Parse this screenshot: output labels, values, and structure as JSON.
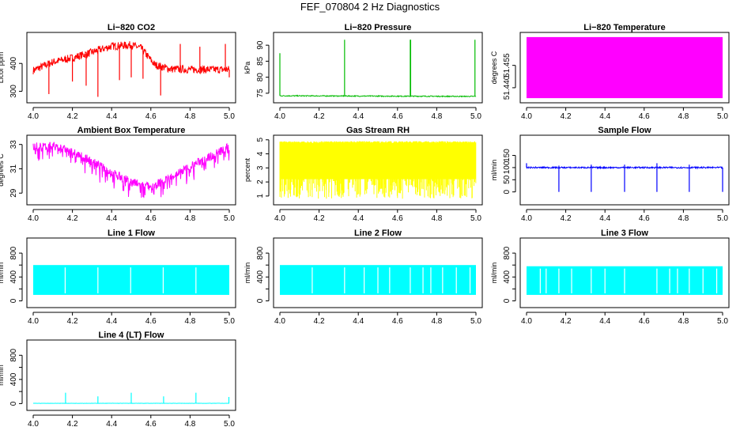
{
  "title": "FEF_070804  2 Hz Diagnostics",
  "colors": {
    "co2": "#ff0000",
    "pressure": "#00bb00",
    "temperature": "#ff00ff",
    "ambient": "#ff00ff",
    "rh": "#ffff00",
    "sample": "#0000ff",
    "lines": "#00ffff"
  },
  "chart_data": [
    {
      "type": "line",
      "title": "Li−820 CO2",
      "xlabel": "",
      "ylabel": "Licor ppm",
      "xlim": [
        4.0,
        5.0
      ],
      "ylim": [
        270,
        500
      ],
      "xticks": [
        4.0,
        4.2,
        4.4,
        4.6,
        4.8,
        5.0
      ],
      "xtick_labels": [
        "4.0",
        "4.2",
        "4.4",
        "4.6",
        "4.8",
        "5.0"
      ],
      "yticks": [
        300,
        400
      ],
      "ytick_labels": [
        "300",
        "400"
      ],
      "color_key": "co2",
      "series": [
        {
          "name": "CO2",
          "baseline": [
            [
              4.0,
              375
            ],
            [
              4.1,
              405
            ],
            [
              4.2,
              420
            ],
            [
              4.3,
              440
            ],
            [
              4.4,
              462
            ],
            [
              4.5,
              466
            ],
            [
              4.55,
              455
            ],
            [
              4.62,
              395
            ],
            [
              4.7,
              380
            ],
            [
              4.8,
              378
            ],
            [
              5.0,
              378
            ]
          ],
          "noise": 14,
          "spikes": [
            [
              4.08,
              290
            ],
            [
              4.2,
              335
            ],
            [
              4.27,
              320
            ],
            [
              4.33,
              280
            ],
            [
              4.44,
              340
            ],
            [
              4.5,
              350
            ],
            [
              4.56,
              345
            ],
            [
              4.65,
              285
            ],
            [
              4.75,
              470
            ],
            [
              4.85,
              460
            ],
            [
              4.98,
              470
            ],
            [
              5.0,
              350
            ]
          ]
        }
      ]
    },
    {
      "type": "line",
      "title": "Li−820 Pressure",
      "xlabel": "",
      "ylabel": "kPa",
      "xlim": [
        4.0,
        5.0
      ],
      "ylim": [
        73,
        93
      ],
      "xticks": [
        4.0,
        4.2,
        4.4,
        4.6,
        4.8,
        5.0
      ],
      "xtick_labels": [
        "4.0",
        "4.2",
        "4.4",
        "4.6",
        "4.8",
        "5.0"
      ],
      "yticks": [
        75,
        80,
        85,
        90
      ],
      "ytick_labels": [
        "75",
        "80",
        "85",
        "90"
      ],
      "color_key": "pressure",
      "series": [
        {
          "name": "Pressure",
          "baseline": [
            [
              4.0,
              74.2
            ],
            [
              5.0,
              74.0
            ]
          ],
          "noise": 0.15,
          "spikes": [
            [
              4.0,
              87.5
            ],
            [
              4.33,
              91.7
            ],
            [
              4.665,
              91.7
            ],
            [
              4.667,
              91.7
            ],
            [
              4.995,
              91.7
            ]
          ]
        }
      ]
    },
    {
      "type": "area",
      "title": "Li−820 Temperature",
      "xlabel": "",
      "ylabel": "degrees C",
      "xlim": [
        4.0,
        5.0
      ],
      "ylim": [
        51.432,
        51.475
      ],
      "xticks": [
        4.0,
        4.2,
        4.4,
        4.6,
        4.8,
        5.0
      ],
      "xtick_labels": [
        "4.0",
        "4.2",
        "4.4",
        "4.6",
        "4.8",
        "5.0"
      ],
      "yticks": [
        51.44,
        51.455
      ],
      "ytick_labels": [
        "51.440",
        "51.455"
      ],
      "color_key": "temperature",
      "series": [
        {
          "name": "Temperature",
          "band": [
            51.433,
            51.474
          ]
        }
      ]
    },
    {
      "type": "line",
      "title": "Ambient Box Temperature",
      "xlabel": "",
      "ylabel": "degrees C",
      "xlim": [
        4.0,
        5.0
      ],
      "ylim": [
        28.3,
        33.5
      ],
      "xticks": [
        4.0,
        4.2,
        4.4,
        4.6,
        4.8,
        5.0
      ],
      "xtick_labels": [
        "4.0",
        "4.2",
        "4.4",
        "4.6",
        "4.8",
        "5.0"
      ],
      "yticks": [
        29,
        31,
        33
      ],
      "ytick_labels": [
        "29",
        "31",
        "33"
      ],
      "color_key": "ambient",
      "series": [
        {
          "name": "Ambient",
          "baseline": [
            [
              4.0,
              32.8
            ],
            [
              4.1,
              32.9
            ],
            [
              4.2,
              32.4
            ],
            [
              4.3,
              31.6
            ],
            [
              4.4,
              30.7
            ],
            [
              4.5,
              29.9
            ],
            [
              4.6,
              29.5
            ],
            [
              4.7,
              30.3
            ],
            [
              4.8,
              31.2
            ],
            [
              4.9,
              32.0
            ],
            [
              5.0,
              32.8
            ]
          ],
          "noise": 0.35,
          "downspikes": 1.1
        }
      ]
    },
    {
      "type": "area",
      "title": "Gas Stream RH",
      "xlabel": "",
      "ylabel": "percent",
      "xlim": [
        4.0,
        5.0
      ],
      "ylim": [
        0.6,
        5.1
      ],
      "xticks": [
        4.0,
        4.2,
        4.4,
        4.6,
        4.8,
        5.0
      ],
      "xtick_labels": [
        "4.0",
        "4.2",
        "4.4",
        "4.6",
        "4.8",
        "5.0"
      ],
      "yticks": [
        1,
        2,
        3,
        4,
        5
      ],
      "ytick_labels": [
        "1",
        "2",
        "3",
        "4",
        "5"
      ],
      "color_key": "rh",
      "series": [
        {
          "name": "RH",
          "band": [
            0.8,
            4.9
          ],
          "dense": true
        }
      ]
    },
    {
      "type": "line",
      "title": "Sample Flow",
      "xlabel": "",
      "ylabel": "ml/min",
      "xlim": [
        4.0,
        5.0
      ],
      "ylim": [
        -40,
        220
      ],
      "xticks": [
        4.0,
        4.2,
        4.4,
        4.6,
        4.8,
        5.0
      ],
      "xtick_labels": [
        "4.0",
        "4.2",
        "4.4",
        "4.6",
        "4.8",
        "5.0"
      ],
      "yticks": [
        0,
        50,
        100,
        150
      ],
      "ytick_labels": [
        "0",
        "50",
        "100",
        "150"
      ],
      "color_key": "sample",
      "series": [
        {
          "name": "Sample",
          "baseline": [
            [
              4.0,
              100
            ],
            [
              5.0,
              100
            ]
          ],
          "noise": 3,
          "spikes": [
            [
              4.165,
              0
            ],
            [
              4.33,
              0
            ],
            [
              4.5,
              0
            ],
            [
              4.665,
              0
            ],
            [
              4.83,
              0
            ],
            [
              5.0,
              0
            ],
            [
              4.165,
              108
            ],
            [
              4.33,
              112
            ],
            [
              4.5,
              112
            ],
            [
              4.665,
              118
            ],
            [
              4.83,
              112
            ],
            [
              4.0,
              118
            ]
          ]
        }
      ]
    },
    {
      "type": "area",
      "title": "Line 1 Flow",
      "xlabel": "",
      "ylabel": "ml/min",
      "xlim": [
        4.0,
        5.0
      ],
      "ylim": [
        -60,
        1000
      ],
      "xticks": [
        4.0,
        4.2,
        4.4,
        4.6,
        4.8,
        5.0
      ],
      "xtick_labels": [
        "4.0",
        "4.2",
        "4.4",
        "4.6",
        "4.8",
        "5.0"
      ],
      "yticks": [
        0,
        400,
        800
      ],
      "ytick_labels": [
        "0",
        "400",
        "800"
      ],
      "minor_yticks": [
        200,
        600
      ],
      "color_key": "lines",
      "series": [
        {
          "name": "Line1",
          "band": [
            100,
            600
          ],
          "gaps": [
            4.163,
            4.33,
            4.497,
            4.663,
            4.83
          ]
        }
      ]
    },
    {
      "type": "area",
      "title": "Line 2 Flow",
      "xlabel": "",
      "ylabel": "ml/min",
      "xlim": [
        4.0,
        5.0
      ],
      "ylim": [
        -60,
        1000
      ],
      "xticks": [
        4.0,
        4.2,
        4.4,
        4.6,
        4.8,
        5.0
      ],
      "xtick_labels": [
        "4.0",
        "4.2",
        "4.4",
        "4.6",
        "4.8",
        "5.0"
      ],
      "yticks": [
        0,
        400,
        800
      ],
      "ytick_labels": [
        "0",
        "400",
        "800"
      ],
      "minor_yticks": [
        200,
        600
      ],
      "color_key": "lines",
      "series": [
        {
          "name": "Line2",
          "band": [
            100,
            600
          ],
          "gaps": [
            4.165,
            4.33,
            4.43,
            4.5,
            4.56,
            4.665,
            4.73,
            4.77,
            4.83,
            4.9,
            4.97
          ]
        }
      ]
    },
    {
      "type": "area",
      "title": "Line 3 Flow",
      "xlabel": "",
      "ylabel": "ml/min",
      "xlim": [
        4.0,
        5.0
      ],
      "ylim": [
        -60,
        1000
      ],
      "xticks": [
        4.0,
        4.2,
        4.4,
        4.6,
        4.8,
        5.0
      ],
      "xtick_labels": [
        "4.0",
        "4.2",
        "4.4",
        "4.6",
        "4.8",
        "5.0"
      ],
      "yticks": [
        0,
        400,
        800
      ],
      "ytick_labels": [
        "0",
        "400",
        "800"
      ],
      "minor_yticks": [
        200,
        600
      ],
      "color_key": "lines",
      "series": [
        {
          "name": "Line3",
          "band": [
            100,
            580
          ],
          "gaps": [
            4.07,
            4.1,
            4.165,
            4.23,
            4.33,
            4.4,
            4.5,
            4.665,
            4.73,
            4.77,
            4.83,
            4.9,
            4.97
          ]
        }
      ]
    },
    {
      "type": "line",
      "title": "Line 4 (LT) Flow",
      "xlabel": "",
      "ylabel": "ml/min",
      "xlim": [
        4.0,
        5.0
      ],
      "ylim": [
        -60,
        1000
      ],
      "xticks": [
        4.0,
        4.2,
        4.4,
        4.6,
        4.8,
        5.0
      ],
      "xtick_labels": [
        "4.0",
        "4.2",
        "4.4",
        "4.6",
        "4.8",
        "5.0"
      ],
      "yticks": [
        0,
        400,
        800
      ],
      "ytick_labels": [
        "0",
        "400",
        "800"
      ],
      "minor_yticks": [
        200,
        600
      ],
      "color_key": "lines",
      "series": [
        {
          "name": "Line4",
          "baseline": [
            [
              4.0,
              5
            ],
            [
              5.0,
              5
            ]
          ],
          "noise": 2,
          "spikes": [
            [
              4.165,
              180
            ],
            [
              4.33,
              120
            ],
            [
              4.5,
              180
            ],
            [
              4.665,
              120
            ],
            [
              4.83,
              180
            ],
            [
              4.998,
              110
            ]
          ]
        }
      ]
    }
  ]
}
